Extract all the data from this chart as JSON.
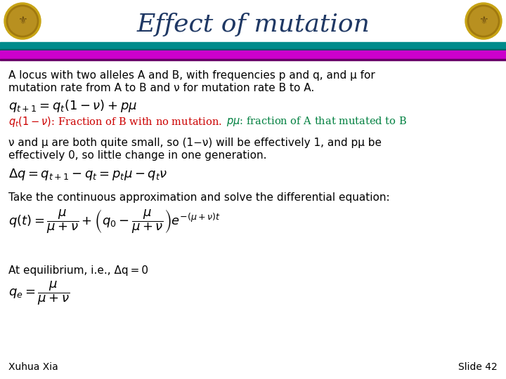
{
  "title": "Effect of mutation",
  "title_color": "#1F3864",
  "title_fontsize": 26,
  "bg_color": "#FFFFFF",
  "teal_color": "#008B8B",
  "magenta_color": "#CC00CC",
  "body_text_color": "#000000",
  "eq_color_red": "#CC0000",
  "eq_color_green": "#008040",
  "footer_left": "Xuhua Xia",
  "footer_right": "Slide 42",
  "logo_color": "#DAA520"
}
